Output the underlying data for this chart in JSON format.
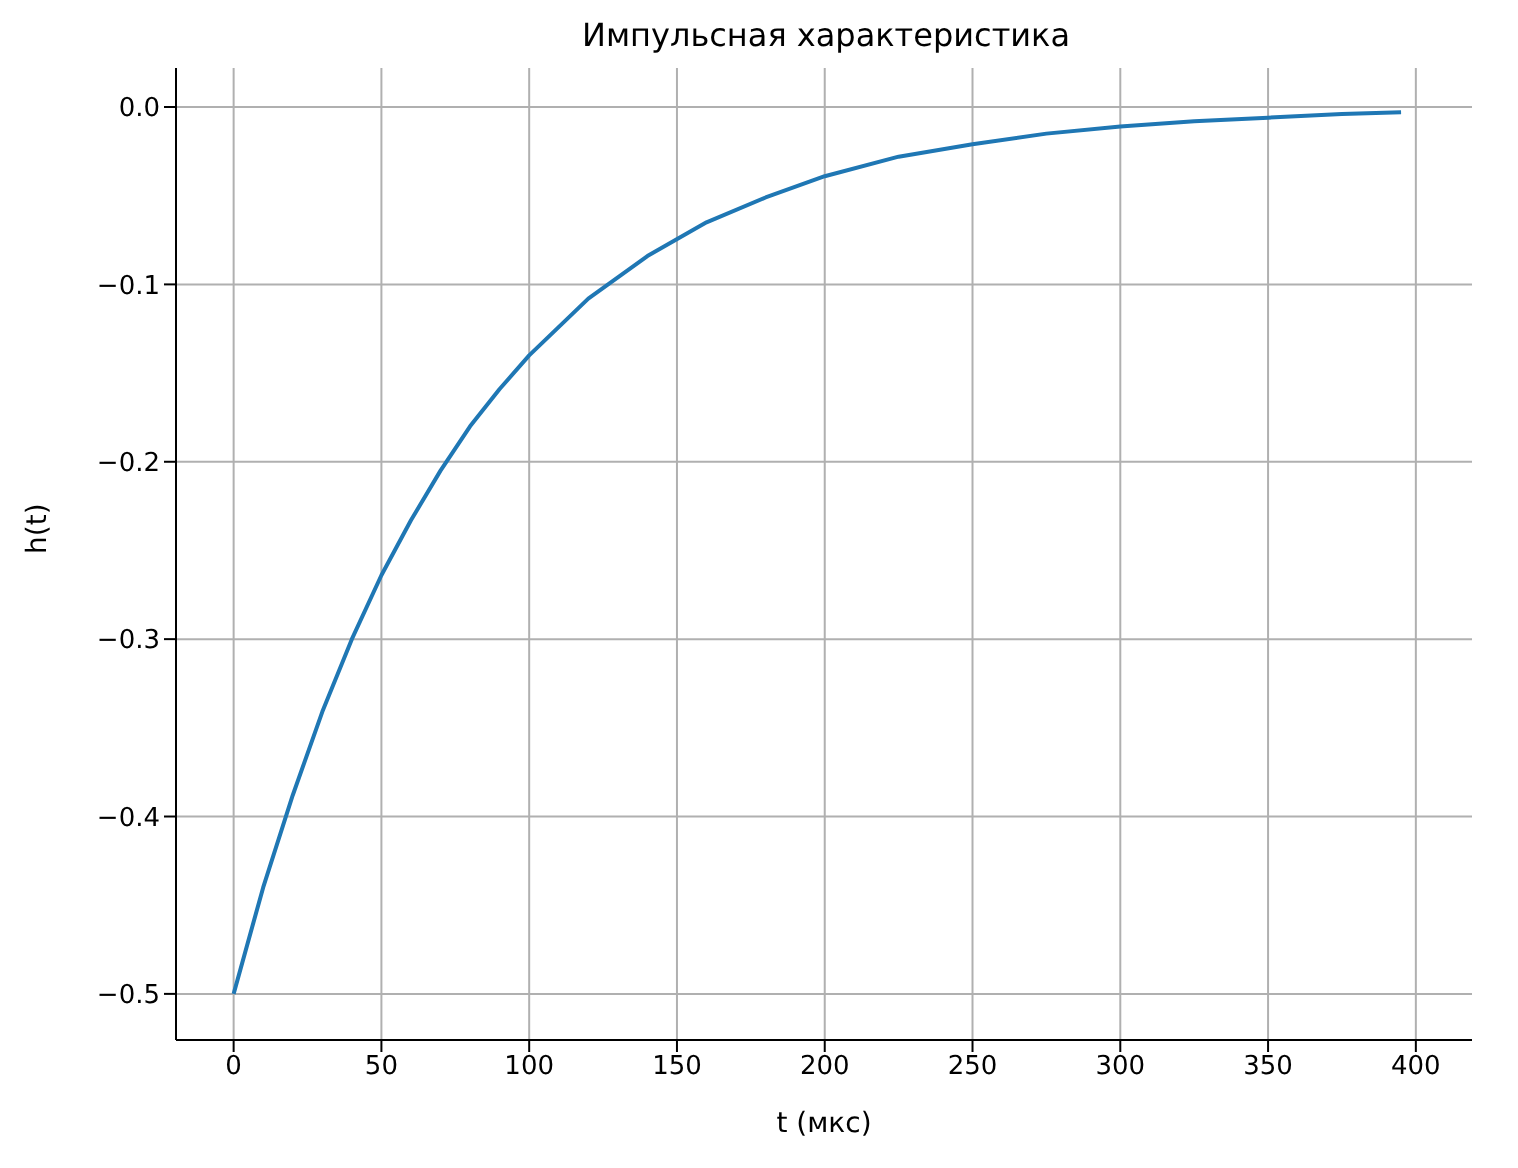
{
  "chart_data": {
    "type": "line",
    "title": "Импульсная характеристика",
    "xlabel": "t (мкс)",
    "ylabel": "h(t)",
    "x": [
      0,
      10,
      20,
      30,
      40,
      50,
      60,
      70,
      80,
      90,
      100,
      120,
      140,
      160,
      180,
      200,
      225,
      250,
      275,
      300,
      325,
      350,
      375,
      395
    ],
    "series": [
      {
        "color": "#1f77b4",
        "values": [
          -0.5,
          -0.44,
          -0.388,
          -0.341,
          -0.3,
          -0.264,
          -0.233,
          -0.205,
          -0.18,
          -0.159,
          -0.14,
          -0.108,
          -0.084,
          -0.065,
          -0.051,
          -0.039,
          -0.028,
          -0.021,
          -0.015,
          -0.011,
          -0.008,
          -0.006,
          -0.004,
          -0.003
        ]
      }
    ],
    "xlim": [
      -19.5,
      419
    ],
    "xticks": [
      0,
      50,
      100,
      150,
      200,
      250,
      300,
      350,
      400
    ],
    "ylim": [
      -0.526,
      0.022
    ],
    "yticks": [
      {
        "value": -0.5,
        "label": "−0.5"
      },
      {
        "value": -0.4,
        "label": "−0.4"
      },
      {
        "value": -0.3,
        "label": "−0.3"
      },
      {
        "value": -0.2,
        "label": "−0.2"
      },
      {
        "value": -0.1,
        "label": "−0.1"
      },
      {
        "value": 0,
        "label": "0.0"
      }
    ],
    "grid": true,
    "marker": "none",
    "line_style": "solid"
  }
}
